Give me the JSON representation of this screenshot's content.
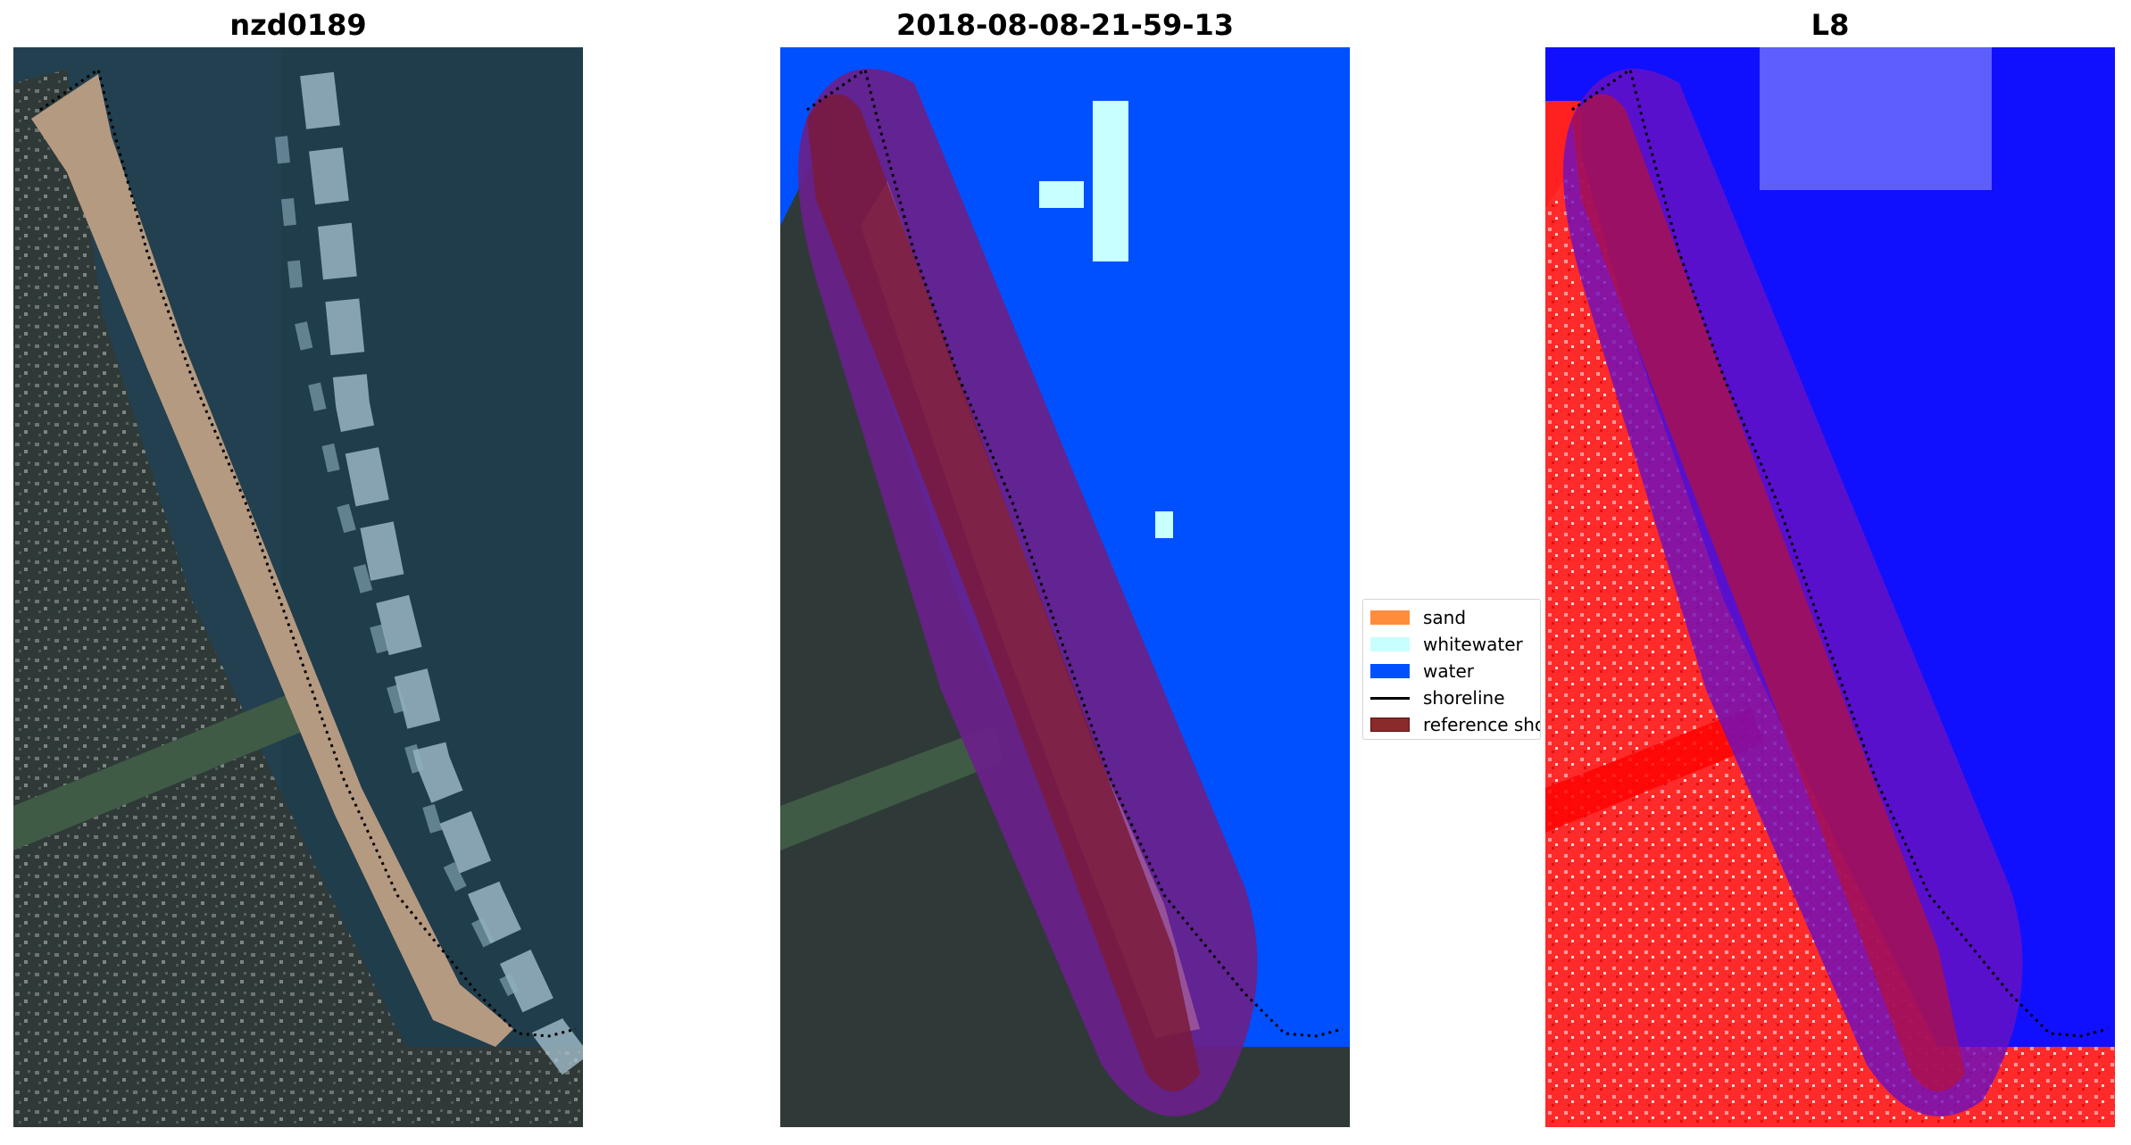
{
  "panels": [
    {
      "title": "nzd0189"
    },
    {
      "title": "2018-08-08-21-59-13"
    },
    {
      "title": "L8"
    }
  ],
  "legend": {
    "items": [
      {
        "label": "sand",
        "color": "#ff8c3c",
        "kind": "patch"
      },
      {
        "label": "whitewater",
        "color": "#c8ffff",
        "kind": "patch"
      },
      {
        "label": "water",
        "color": "#0050ff",
        "kind": "patch"
      },
      {
        "label": "shoreline",
        "color": "#000000",
        "kind": "line"
      },
      {
        "label": "reference shoreline",
        "color": "#8b2a2a",
        "kind": "patch"
      }
    ]
  },
  "colors": {
    "sea": "#1f3a4a",
    "land": "#2e3a36",
    "beach": "#b59a82",
    "surf": "#cfe0e8",
    "class_water": "#0050ff",
    "class_whitewater": "#c8ffff",
    "buffer_overlay": "#7a1f6e",
    "index_land": "#ff2020",
    "index_water": "#1010ff"
  }
}
